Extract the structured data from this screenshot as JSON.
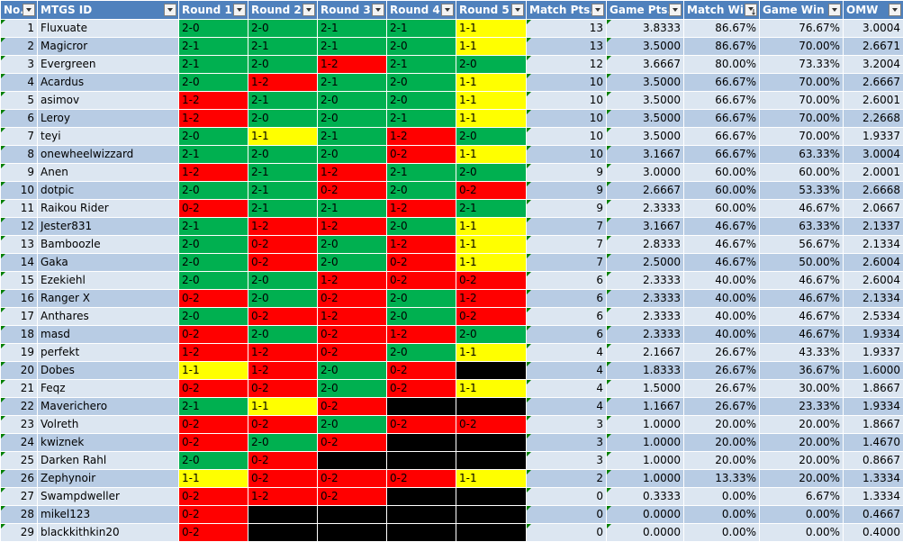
{
  "headers": [
    "No.",
    "MTGS ID",
    "Round 1",
    "Round 2",
    "Round 3",
    "Round 4",
    "Round 5",
    "Match Pts.",
    "Game Pts.",
    "Match Win",
    "Game Win %",
    "OMW"
  ],
  "colors": {
    "green": "#00b050",
    "red": "#ff0000",
    "yellow": "#ffff00",
    "black": "#000000",
    "header": "#4f81bd"
  },
  "rows": [
    {
      "no": "1",
      "id": "Fluxuate",
      "rounds": [
        "2-0",
        "2-0",
        "2-1",
        "2-1",
        "1-1"
      ],
      "match_pts": "13",
      "game_pts": "3.8333",
      "match_win": "86.67%",
      "game_win": "76.67%",
      "omw": "3.0004"
    },
    {
      "no": "2",
      "id": "Magicror",
      "rounds": [
        "2-1",
        "2-1",
        "2-1",
        "2-0",
        "1-1"
      ],
      "match_pts": "13",
      "game_pts": "3.5000",
      "match_win": "86.67%",
      "game_win": "70.00%",
      "omw": "2.6671"
    },
    {
      "no": "3",
      "id": "Evergreen",
      "rounds": [
        "2-1",
        "2-0",
        "1-2",
        "2-1",
        "2-0"
      ],
      "match_pts": "12",
      "game_pts": "3.6667",
      "match_win": "80.00%",
      "game_win": "73.33%",
      "omw": "3.2004"
    },
    {
      "no": "4",
      "id": "Acardus",
      "rounds": [
        "2-0",
        "1-2",
        "2-1",
        "2-0",
        "1-1"
      ],
      "match_pts": "10",
      "game_pts": "3.5000",
      "match_win": "66.67%",
      "game_win": "70.00%",
      "omw": "2.6667"
    },
    {
      "no": "5",
      "id": "asimov",
      "rounds": [
        "1-2",
        "2-1",
        "2-0",
        "2-0",
        "1-1"
      ],
      "match_pts": "10",
      "game_pts": "3.5000",
      "match_win": "66.67%",
      "game_win": "70.00%",
      "omw": "2.6001"
    },
    {
      "no": "6",
      "id": "Leroy",
      "rounds": [
        "1-2",
        "2-0",
        "2-0",
        "2-1",
        "1-1"
      ],
      "match_pts": "10",
      "game_pts": "3.5000",
      "match_win": "66.67%",
      "game_win": "70.00%",
      "omw": "2.2668"
    },
    {
      "no": "7",
      "id": "teyi",
      "rounds": [
        "2-0",
        "1-1",
        "2-1",
        "1-2",
        "2-0"
      ],
      "match_pts": "10",
      "game_pts": "3.5000",
      "match_win": "66.67%",
      "game_win": "70.00%",
      "omw": "1.9337"
    },
    {
      "no": "8",
      "id": "onewheelwizzard",
      "rounds": [
        "2-1",
        "2-0",
        "2-0",
        "0-2",
        "1-1"
      ],
      "match_pts": "10",
      "game_pts": "3.1667",
      "match_win": "66.67%",
      "game_win": "63.33%",
      "omw": "3.0004"
    },
    {
      "no": "9",
      "id": "Anen",
      "rounds": [
        "1-2",
        "2-1",
        "1-2",
        "2-1",
        "2-0"
      ],
      "match_pts": "9",
      "game_pts": "3.0000",
      "match_win": "60.00%",
      "game_win": "60.00%",
      "omw": "2.0001"
    },
    {
      "no": "10",
      "id": "dotpic",
      "rounds": [
        "2-0",
        "2-1",
        "0-2",
        "2-0",
        "0-2"
      ],
      "match_pts": "9",
      "game_pts": "2.6667",
      "match_win": "60.00%",
      "game_win": "53.33%",
      "omw": "2.6668"
    },
    {
      "no": "11",
      "id": "Raikou Rider",
      "rounds": [
        "0-2",
        "2-1",
        "2-1",
        "1-2",
        "2-1"
      ],
      "match_pts": "9",
      "game_pts": "2.3333",
      "match_win": "60.00%",
      "game_win": "46.67%",
      "omw": "2.0667"
    },
    {
      "no": "12",
      "id": "Jester831",
      "rounds": [
        "2-1",
        "1-2",
        "1-2",
        "2-0",
        "1-1"
      ],
      "match_pts": "7",
      "game_pts": "3.1667",
      "match_win": "46.67%",
      "game_win": "63.33%",
      "omw": "2.1337"
    },
    {
      "no": "13",
      "id": "Bamboozle",
      "rounds": [
        "2-0",
        "0-2",
        "2-0",
        "1-2",
        "1-1"
      ],
      "match_pts": "7",
      "game_pts": "2.8333",
      "match_win": "46.67%",
      "game_win": "56.67%",
      "omw": "2.1334"
    },
    {
      "no": "14",
      "id": "Gaka",
      "rounds": [
        "2-0",
        "0-2",
        "2-0",
        "0-2",
        "1-1"
      ],
      "match_pts": "7",
      "game_pts": "2.5000",
      "match_win": "46.67%",
      "game_win": "50.00%",
      "omw": "2.6004"
    },
    {
      "no": "15",
      "id": "Ezekiehl",
      "rounds": [
        "2-0",
        "2-0",
        "1-2",
        "0-2",
        "0-2"
      ],
      "match_pts": "6",
      "game_pts": "2.3333",
      "match_win": "40.00%",
      "game_win": "46.67%",
      "omw": "2.6004"
    },
    {
      "no": "16",
      "id": "Ranger X",
      "rounds": [
        "0-2",
        "2-0",
        "0-2",
        "2-0",
        "1-2"
      ],
      "match_pts": "6",
      "game_pts": "2.3333",
      "match_win": "40.00%",
      "game_win": "46.67%",
      "omw": "2.1334"
    },
    {
      "no": "17",
      "id": "Anthares",
      "rounds": [
        "2-0",
        "0-2",
        "1-2",
        "2-0",
        "0-2"
      ],
      "match_pts": "6",
      "game_pts": "2.3333",
      "match_win": "40.00%",
      "game_win": "46.67%",
      "omw": "2.5334"
    },
    {
      "no": "18",
      "id": "masd",
      "rounds": [
        "0-2",
        "2-0",
        "0-2",
        "1-2",
        "2-0"
      ],
      "match_pts": "6",
      "game_pts": "2.3333",
      "match_win": "40.00%",
      "game_win": "46.67%",
      "omw": "1.9334"
    },
    {
      "no": "19",
      "id": "perfekt",
      "rounds": [
        "1-2",
        "1-2",
        "0-2",
        "2-0",
        "1-1"
      ],
      "match_pts": "4",
      "game_pts": "2.1667",
      "match_win": "26.67%",
      "game_win": "43.33%",
      "omw": "1.9337"
    },
    {
      "no": "20",
      "id": "Dobes",
      "rounds": [
        "1-1",
        "1-2",
        "2-0",
        "0-2",
        ""
      ],
      "match_pts": "4",
      "game_pts": "1.8333",
      "match_win": "26.67%",
      "game_win": "36.67%",
      "omw": "1.6000"
    },
    {
      "no": "21",
      "id": "Feqz",
      "rounds": [
        "0-2",
        "0-2",
        "2-0",
        "0-2",
        "1-1"
      ],
      "match_pts": "4",
      "game_pts": "1.5000",
      "match_win": "26.67%",
      "game_win": "30.00%",
      "omw": "1.8667"
    },
    {
      "no": "22",
      "id": "Maverichero",
      "rounds": [
        "2-1",
        "1-1",
        "0-2",
        "",
        ""
      ],
      "match_pts": "4",
      "game_pts": "1.1667",
      "match_win": "26.67%",
      "game_win": "23.33%",
      "omw": "1.9334"
    },
    {
      "no": "23",
      "id": "Volreth",
      "rounds": [
        "0-2",
        "0-2",
        "2-0",
        "0-2",
        "0-2"
      ],
      "match_pts": "3",
      "game_pts": "1.0000",
      "match_win": "20.00%",
      "game_win": "20.00%",
      "omw": "1.8667"
    },
    {
      "no": "24",
      "id": "kwiznek",
      "rounds": [
        "0-2",
        "2-0",
        "0-2",
        "",
        ""
      ],
      "match_pts": "3",
      "game_pts": "1.0000",
      "match_win": "20.00%",
      "game_win": "20.00%",
      "omw": "1.4670"
    },
    {
      "no": "25",
      "id": "Darken Rahl",
      "rounds": [
        "2-0",
        "0-2",
        "",
        "",
        ""
      ],
      "match_pts": "3",
      "game_pts": "1.0000",
      "match_win": "20.00%",
      "game_win": "20.00%",
      "omw": "0.8667"
    },
    {
      "no": "26",
      "id": "Zephynoir",
      "rounds": [
        "1-1",
        "0-2",
        "0-2",
        "0-2",
        "1-1"
      ],
      "match_pts": "2",
      "game_pts": "1.0000",
      "match_win": "13.33%",
      "game_win": "20.00%",
      "omw": "1.3334"
    },
    {
      "no": "27",
      "id": "Swampdweller",
      "rounds": [
        "0-2",
        "1-2",
        "0-2",
        "",
        ""
      ],
      "match_pts": "0",
      "game_pts": "0.3333",
      "match_win": "0.00%",
      "game_win": "6.67%",
      "omw": "1.3334"
    },
    {
      "no": "28",
      "id": "mikel123",
      "rounds": [
        "0-2",
        "",
        "",
        "",
        ""
      ],
      "match_pts": "0",
      "game_pts": "0.0000",
      "match_win": "0.00%",
      "game_win": "0.00%",
      "omw": "0.4667"
    },
    {
      "no": "29",
      "id": "blackkithkin20",
      "rounds": [
        "0-2",
        "",
        "",
        "",
        ""
      ],
      "match_pts": "0",
      "game_pts": "0.0000",
      "match_win": "0.00%",
      "game_win": "0.00%",
      "omw": "0.4000"
    }
  ]
}
